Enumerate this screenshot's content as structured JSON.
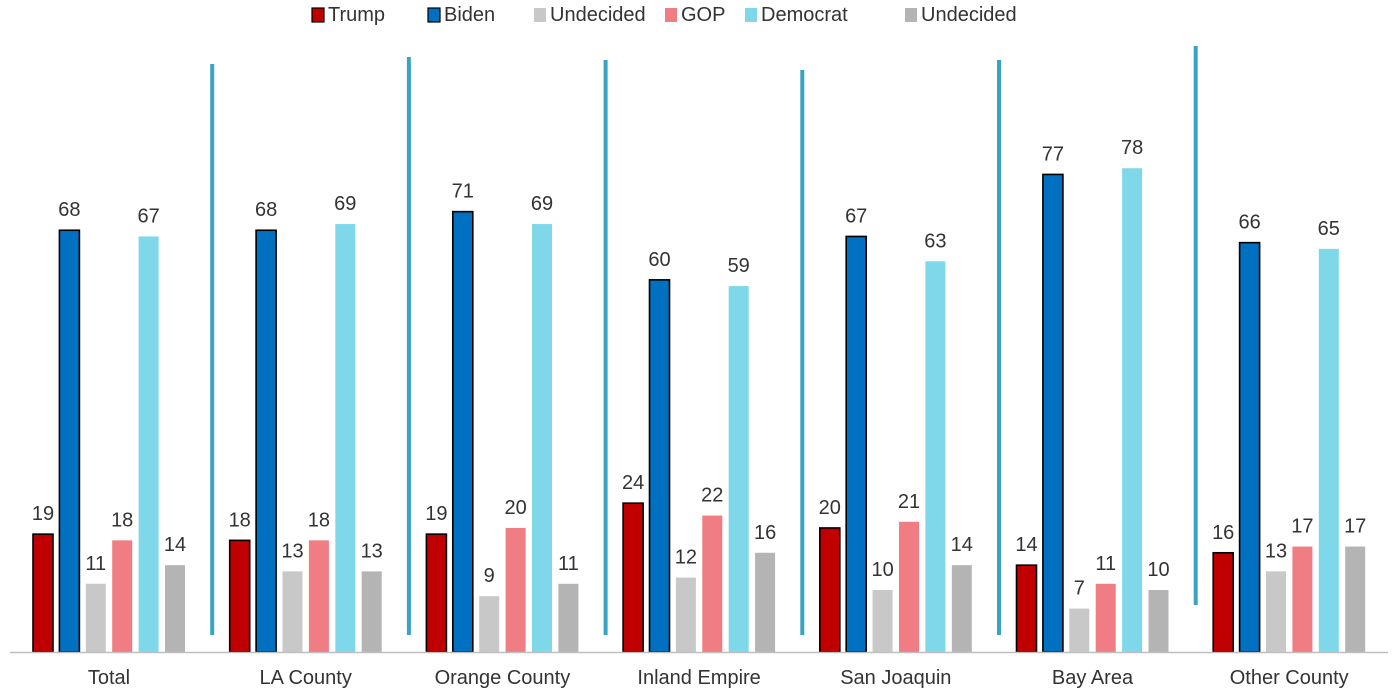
{
  "chart_data": {
    "type": "bar",
    "categories": [
      "Total",
      "LA County",
      "Orange County",
      "Inland Empire",
      "San Joaquin",
      "Bay Area",
      "Other County"
    ],
    "series": [
      {
        "name": "Trump",
        "values": [
          19,
          18,
          19,
          24,
          20,
          14,
          16
        ]
      },
      {
        "name": "Biden",
        "values": [
          68,
          68,
          71,
          60,
          67,
          77,
          66
        ]
      },
      {
        "name": "Undecided",
        "values": [
          11,
          13,
          9,
          12,
          10,
          7,
          13
        ]
      },
      {
        "name": "GOP",
        "values": [
          18,
          18,
          20,
          22,
          21,
          11,
          17
        ]
      },
      {
        "name": "Democrat",
        "values": [
          67,
          69,
          69,
          59,
          63,
          78,
          65
        ]
      },
      {
        "name": "Undecided",
        "values": [
          14,
          13,
          11,
          16,
          14,
          10,
          17
        ]
      }
    ],
    "colors": [
      "#c00000",
      "#0070c0",
      "#c8c8c8",
      "#f07c84",
      "#7fd8ea",
      "#b4b4b4"
    ],
    "outlined_series": [
      0,
      1
    ],
    "divider_color": "#3aa3c4",
    "legend_position": "top",
    "ylim": [
      0,
      89
    ],
    "grid": false,
    "data_labels": true,
    "title": "",
    "xlabel": "",
    "ylabel": ""
  }
}
